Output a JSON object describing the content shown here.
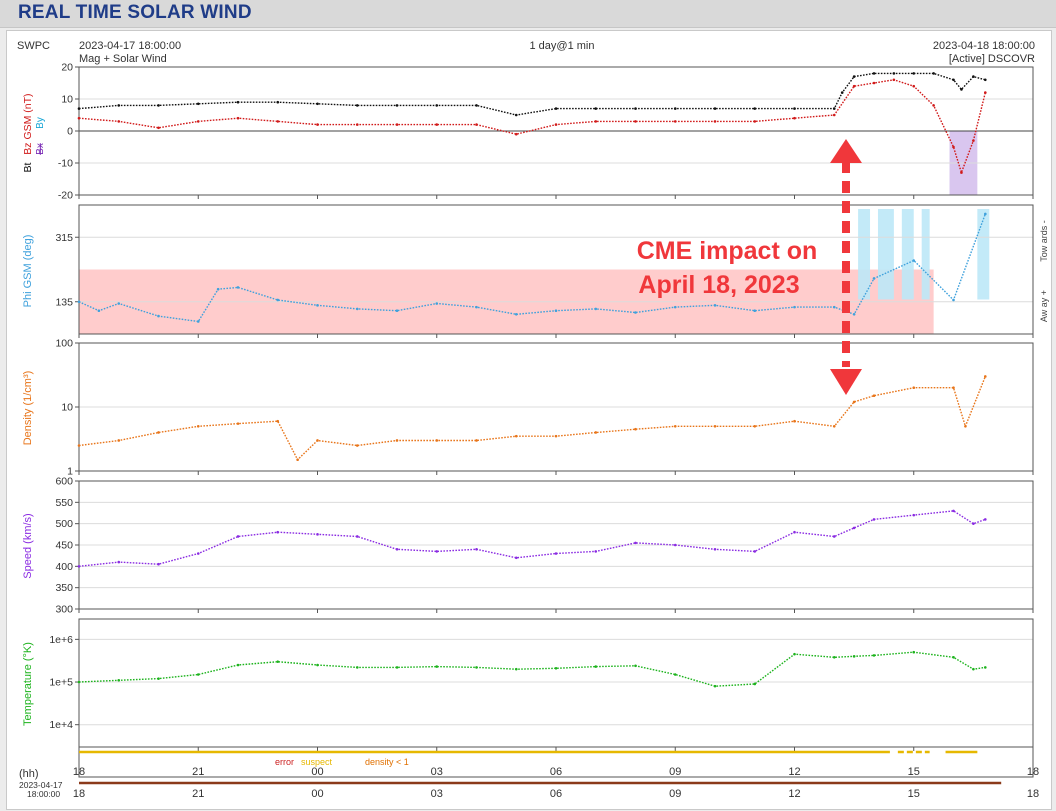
{
  "page": {
    "title": "REAL TIME SOLAR WIND"
  },
  "chart_header": {
    "source": "SWPC",
    "start_time": "2023-04-17 18:00:00",
    "subtitle": "Mag + Solar Wind",
    "span": "1 day@1 min",
    "end_time": "2023-04-18 18:00:00",
    "status": "[Active] DSCOVR"
  },
  "annotation": {
    "line1": "CME impact on",
    "line2": "April 18, 2023",
    "color": "#f0373b"
  },
  "colors": {
    "bt": "#111111",
    "bz": "#d11a1a",
    "bx": "#7a2ab5",
    "by": "#1aa7d6",
    "phi": "#3fa1dc",
    "density": "#e8751a",
    "speed": "#8a2be2",
    "temperature": "#1db31d",
    "phi_band": "#ffcccc",
    "phi_fill": "#bde8f7",
    "bz_fill": "#d9c6ef",
    "quality_suspect": "#e6b800",
    "quality_error": "#cc2222",
    "quality_density": "#e07000",
    "timeline": "#8b3a1a"
  },
  "quality_legend": {
    "error": "error",
    "suspect": "suspect",
    "density": "density < 1"
  },
  "x_axis": {
    "hh_label": "(hh)",
    "date_label": "2023-04-17",
    "time_label": "18:00:00",
    "ticks": [
      "18",
      "21",
      "00",
      "03",
      "06",
      "09",
      "12",
      "15",
      "18"
    ]
  },
  "chart_data": [
    {
      "type": "scatter",
      "panel": "mag",
      "ylabel_parts": [
        "Bt",
        "Bz GSM (nT)",
        "Bx",
        "By"
      ],
      "ylim": [
        -20,
        20
      ],
      "y_ticks": [
        "20",
        "10",
        "0",
        "-10",
        "-20"
      ],
      "grid": true,
      "x_unit": "hours since 2023-04-17 18:00",
      "series": [
        {
          "name": "Bt",
          "values": [
            [
              0,
              7
            ],
            [
              1,
              8
            ],
            [
              2,
              8
            ],
            [
              3,
              8.5
            ],
            [
              4,
              9
            ],
            [
              5,
              9
            ],
            [
              6,
              8.5
            ],
            [
              7,
              8
            ],
            [
              8,
              8
            ],
            [
              9,
              8
            ],
            [
              10,
              8
            ],
            [
              11,
              5
            ],
            [
              12,
              7
            ],
            [
              13,
              7
            ],
            [
              14,
              7
            ],
            [
              15,
              7
            ],
            [
              16,
              7
            ],
            [
              17,
              7
            ],
            [
              18,
              7
            ],
            [
              19,
              7
            ],
            [
              19.2,
              12
            ],
            [
              19.5,
              17
            ],
            [
              20,
              18
            ],
            [
              20.5,
              18
            ],
            [
              21,
              18
            ],
            [
              21.5,
              18
            ],
            [
              22,
              16
            ],
            [
              22.2,
              13
            ],
            [
              22.5,
              17
            ],
            [
              22.8,
              16
            ]
          ]
        },
        {
          "name": "Bz GSM",
          "values": [
            [
              0,
              4
            ],
            [
              1,
              3
            ],
            [
              2,
              1
            ],
            [
              3,
              3
            ],
            [
              4,
              4
            ],
            [
              5,
              3
            ],
            [
              6,
              2
            ],
            [
              7,
              2
            ],
            [
              8,
              2
            ],
            [
              9,
              2
            ],
            [
              10,
              2
            ],
            [
              11,
              -1
            ],
            [
              12,
              2
            ],
            [
              13,
              3
            ],
            [
              14,
              3
            ],
            [
              15,
              3
            ],
            [
              16,
              3
            ],
            [
              17,
              3
            ],
            [
              18,
              4
            ],
            [
              19,
              5
            ],
            [
              19.5,
              14
            ],
            [
              20,
              15
            ],
            [
              20.5,
              16
            ],
            [
              21,
              14
            ],
            [
              21.5,
              8
            ],
            [
              22,
              -5
            ],
            [
              22.2,
              -13
            ],
            [
              22.5,
              -3
            ],
            [
              22.8,
              12
            ]
          ]
        }
      ]
    },
    {
      "type": "scatter",
      "panel": "phi",
      "ylabel": "Phi GSM (deg)",
      "ylim": [
        45,
        405
      ],
      "y_ticks": [
        "315",
        "135"
      ],
      "grid": true,
      "right_labels": [
        "Tow ards -",
        "Aw ay +"
      ],
      "x_unit": "hours since 2023-04-17 18:00",
      "series": [
        {
          "name": "Phi GSM",
          "values": [
            [
              0,
              135
            ],
            [
              0.5,
              110
            ],
            [
              1,
              130
            ],
            [
              2,
              95
            ],
            [
              3,
              80
            ],
            [
              3.5,
              170
            ],
            [
              4,
              175
            ],
            [
              5,
              140
            ],
            [
              6,
              125
            ],
            [
              7,
              115
            ],
            [
              8,
              110
            ],
            [
              9,
              130
            ],
            [
              10,
              120
            ],
            [
              11,
              100
            ],
            [
              12,
              110
            ],
            [
              13,
              115
            ],
            [
              14,
              105
            ],
            [
              15,
              120
            ],
            [
              16,
              125
            ],
            [
              17,
              110
            ],
            [
              18,
              120
            ],
            [
              19,
              120
            ],
            [
              19.5,
              100
            ],
            [
              20,
              200
            ],
            [
              21,
              250
            ],
            [
              22,
              140
            ],
            [
              22.8,
              380
            ]
          ]
        }
      ]
    },
    {
      "type": "scatter",
      "panel": "density",
      "ylabel": "Density (1/cm³)",
      "ylim": [
        1,
        100
      ],
      "yscale": "log",
      "y_ticks": [
        "100",
        "10",
        "1"
      ],
      "grid": true,
      "x_unit": "hours since 2023-04-17 18:00",
      "series": [
        {
          "name": "Density",
          "values": [
            [
              0,
              2.5
            ],
            [
              1,
              3
            ],
            [
              2,
              4
            ],
            [
              3,
              5
            ],
            [
              4,
              5.5
            ],
            [
              5,
              6
            ],
            [
              5.5,
              1.5
            ],
            [
              6,
              3
            ],
            [
              7,
              2.5
            ],
            [
              8,
              3
            ],
            [
              9,
              3
            ],
            [
              10,
              3
            ],
            [
              11,
              3.5
            ],
            [
              12,
              3.5
            ],
            [
              13,
              4
            ],
            [
              14,
              4.5
            ],
            [
              15,
              5
            ],
            [
              16,
              5
            ],
            [
              17,
              5
            ],
            [
              18,
              6
            ],
            [
              19,
              5
            ],
            [
              19.5,
              12
            ],
            [
              20,
              15
            ],
            [
              21,
              20
            ],
            [
              22,
              20
            ],
            [
              22.3,
              5
            ],
            [
              22.8,
              30
            ]
          ]
        }
      ]
    },
    {
      "type": "scatter",
      "panel": "speed",
      "ylabel": "Speed (km/s)",
      "ylim": [
        300,
        600
      ],
      "y_ticks": [
        "600",
        "550",
        "500",
        "450",
        "400",
        "350",
        "300"
      ],
      "grid": true,
      "x_unit": "hours since 2023-04-17 18:00",
      "series": [
        {
          "name": "Speed",
          "values": [
            [
              0,
              400
            ],
            [
              1,
              410
            ],
            [
              2,
              405
            ],
            [
              3,
              430
            ],
            [
              4,
              470
            ],
            [
              5,
              480
            ],
            [
              6,
              475
            ],
            [
              7,
              470
            ],
            [
              8,
              440
            ],
            [
              9,
              435
            ],
            [
              10,
              440
            ],
            [
              11,
              420
            ],
            [
              12,
              430
            ],
            [
              13,
              435
            ],
            [
              14,
              455
            ],
            [
              15,
              450
            ],
            [
              16,
              440
            ],
            [
              17,
              435
            ],
            [
              18,
              480
            ],
            [
              19,
              470
            ],
            [
              19.5,
              490
            ],
            [
              20,
              510
            ],
            [
              21,
              520
            ],
            [
              22,
              530
            ],
            [
              22.5,
              500
            ],
            [
              22.8,
              510
            ]
          ]
        }
      ]
    },
    {
      "type": "scatter",
      "panel": "temperature",
      "ylabel": "Temperature (°K)",
      "ylim": [
        3000,
        3000000
      ],
      "yscale": "log",
      "y_ticks": [
        "1e+6",
        "1e+5",
        "1e+4"
      ],
      "grid": true,
      "x_unit": "hours since 2023-04-17 18:00",
      "series": [
        {
          "name": "Temperature",
          "values": [
            [
              0,
              100000
            ],
            [
              1,
              110000
            ],
            [
              2,
              120000
            ],
            [
              3,
              150000
            ],
            [
              4,
              250000
            ],
            [
              5,
              300000
            ],
            [
              6,
              250000
            ],
            [
              7,
              220000
            ],
            [
              8,
              220000
            ],
            [
              9,
              230000
            ],
            [
              10,
              220000
            ],
            [
              11,
              200000
            ],
            [
              12,
              210000
            ],
            [
              13,
              230000
            ],
            [
              14,
              240000
            ],
            [
              15,
              150000
            ],
            [
              16,
              80000
            ],
            [
              17,
              90000
            ],
            [
              18,
              450000
            ],
            [
              19,
              380000
            ],
            [
              19.5,
              400000
            ],
            [
              20,
              420000
            ],
            [
              21,
              500000
            ],
            [
              22,
              380000
            ],
            [
              22.5,
              200000
            ],
            [
              22.8,
              220000
            ]
          ]
        }
      ]
    }
  ]
}
